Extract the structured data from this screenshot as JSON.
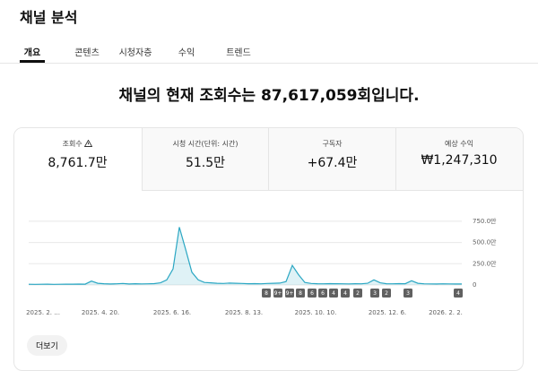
{
  "header": {
    "title": "채널 분석"
  },
  "tabs": [
    "개요",
    "콘텐츠",
    "시청자층",
    "수익",
    "트렌드"
  ],
  "headline": "채널의 현재 조회수는 87,617,059회입니다.",
  "metrics": [
    {
      "label": "조회수",
      "value": "8,761.7만"
    },
    {
      "label": "시청 시간(단위: 시간)",
      "value": "51.5만"
    },
    {
      "label": "구독자",
      "value": "+67.4만"
    },
    {
      "label": "예상 수익",
      "value": "₩1,247,310"
    }
  ],
  "chart_data": {
    "type": "line",
    "x_labels": [
      "2025. 2. ...",
      "2025. 4. 20.",
      "2025. 6. 16.",
      "2025. 8. 13.",
      "2025. 10. 10.",
      "2025. 12. 6.",
      "2026. 2. 2."
    ],
    "series": [
      {
        "color": "#2ba7c3",
        "values": [
          8,
          7,
          8,
          9,
          7,
          8,
          10,
          9,
          11,
          10,
          45,
          20,
          15,
          12,
          14,
          18,
          12,
          15,
          13,
          14,
          16,
          25,
          60,
          190,
          680,
          420,
          150,
          60,
          30,
          25,
          20,
          18,
          22,
          20,
          18,
          15,
          16,
          14,
          18,
          20,
          22,
          40,
          230,
          120,
          30,
          18,
          15,
          14,
          16,
          15,
          14,
          13,
          15,
          14,
          20,
          60,
          25,
          15,
          14,
          16,
          15,
          50,
          20,
          14,
          13,
          12,
          14,
          13,
          12,
          12
        ]
      }
    ],
    "ylim": [
      0,
      780
    ],
    "yticks": [
      {
        "value": 750,
        "label": "750.0만"
      },
      {
        "value": 500,
        "label": "500.0만"
      },
      {
        "value": 250,
        "label": "250.0만"
      },
      0
    ],
    "grid": true
  },
  "badges": [
    "8",
    "9+",
    "9+",
    "8",
    "6",
    "6",
    "4",
    "4",
    "2",
    "3",
    "2",
    "3",
    "4"
  ],
  "more_button": "더보기"
}
